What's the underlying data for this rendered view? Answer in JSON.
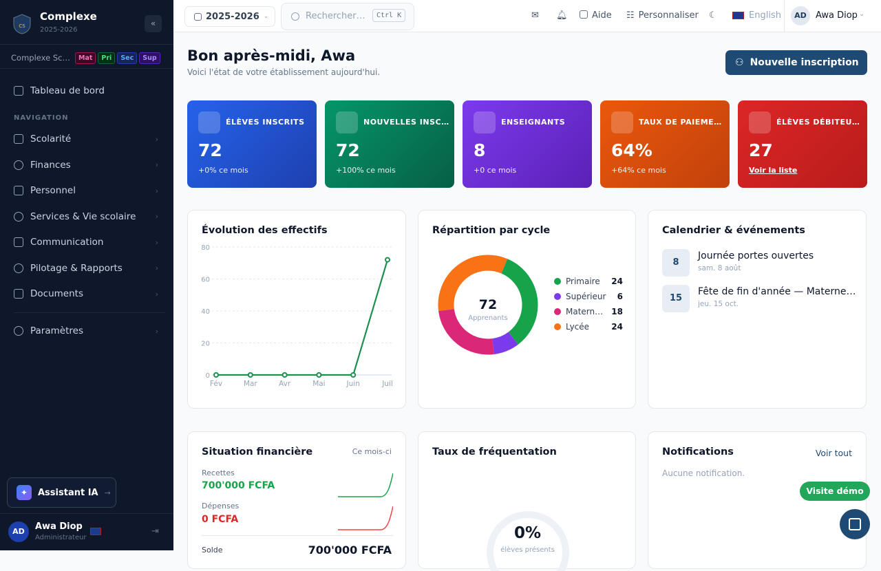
{
  "sidebar": {
    "brand": "Complexe",
    "year": "2025-2026",
    "school": "Complexe Sc…",
    "levels": [
      "Mat",
      "Pri",
      "Sec",
      "Sup"
    ],
    "dashboard": "Tableau de bord",
    "section": "NAVIGATION",
    "nav": [
      "Scolarité",
      "Finances",
      "Personnel",
      "Services & Vie scolaire",
      "Communication",
      "Pilotage & Rapports",
      "Documents"
    ],
    "settings": "Paramètres",
    "assistant": "Assistant IA",
    "user": {
      "initials": "AD",
      "name": "Awa Diop",
      "role": "Administrateur"
    }
  },
  "topbar": {
    "year": "2025-2026",
    "search": "Rechercher…",
    "shortcut": "Ctrl K",
    "help": "Aide",
    "customize": "Personnaliser",
    "language": "English",
    "initials": "AD",
    "user": "Awa Diop"
  },
  "header": {
    "title": "Bon après-midi, Awa",
    "subtitle": "Voici l'état de votre établissement aujourd'hui.",
    "action": "Nouvelle inscription"
  },
  "stats": [
    {
      "label": "ÉLÈVES INSCRITS",
      "value": "72",
      "note": "+0% ce mois"
    },
    {
      "label": "NOUVELLES INSC…",
      "value": "72",
      "note": "+100% ce mois"
    },
    {
      "label": "ENSEIGNANTS",
      "value": "8",
      "note": "+0 ce mois"
    },
    {
      "label": "TAUX DE PAIEME…",
      "value": "64%",
      "note": "+64% ce mois"
    },
    {
      "label": "ÉLÈVES DÉBITEU…",
      "value": "27",
      "note": "Voir la liste"
    }
  ],
  "chart_data": [
    {
      "type": "line",
      "title": "Évolution des effectifs",
      "categories": [
        "Fév",
        "Mar",
        "Avr",
        "Mai",
        "Juin",
        "Juil"
      ],
      "values": [
        0,
        0,
        0,
        0,
        0,
        72
      ],
      "color": "#1a8f4e",
      "ylim": [
        0,
        80
      ],
      "yticks": [
        0,
        20,
        40,
        60,
        80
      ],
      "grid": true
    },
    {
      "type": "pie",
      "title": "Répartition par cycle",
      "total": 72,
      "total_label": "Apprenants",
      "categories": [
        "Primaire",
        "Supérieur",
        "Matern…",
        "Lycée"
      ],
      "values": [
        24,
        6,
        18,
        24
      ],
      "colors": [
        "#16a34a",
        "#7c3aed",
        "#db2777",
        "#f97316"
      ]
    }
  ],
  "calendar": {
    "title": "Calendrier & événements",
    "events": [
      {
        "day": "8",
        "title": "Journée portes ouvertes",
        "date": "sam. 8 août"
      },
      {
        "day": "15",
        "title": "Fête de fin d'année — Materne…",
        "date": "jeu. 15 oct."
      }
    ]
  },
  "finance": {
    "title": "Situation financière",
    "period": "Ce mois-ci",
    "income_label": "Recettes",
    "income": "700'000 FCFA",
    "expense_label": "Dépenses",
    "expense": "0 FCFA",
    "balance_label": "Solde",
    "balance": "700'000 FCFA"
  },
  "attendance": {
    "title": "Taux de fréquentation",
    "value": "0%",
    "caption": "élèves présents"
  },
  "notifications": {
    "title": "Notifications",
    "link": "Voir tout",
    "empty": "Aucune notification."
  },
  "demo": "Visite démo"
}
